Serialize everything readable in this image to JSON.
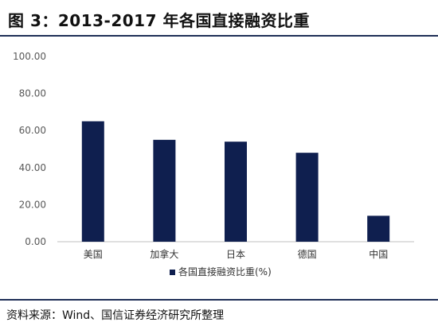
{
  "figure": {
    "title": "图 3：2013-2017 年各国直接融资比重",
    "source": "资料来源：Wind、国信证券经济研究所整理"
  },
  "colors": {
    "bar": "#0f1f4f",
    "rule": "#1f2f57",
    "axis": "#bfbfbf",
    "text": "#595959"
  },
  "chart_data": {
    "type": "bar",
    "categories": [
      "美国",
      "加拿大",
      "日本",
      "德国",
      "中国"
    ],
    "series": [
      {
        "name": "各国直接融资比重(%)",
        "values": [
          65,
          55,
          54,
          48,
          14
        ]
      }
    ],
    "yticks": [
      "0.00",
      "20.00",
      "40.00",
      "60.00",
      "80.00",
      "100.00"
    ],
    "ylim": [
      0,
      100
    ],
    "grid": false,
    "legend": "bottom"
  }
}
